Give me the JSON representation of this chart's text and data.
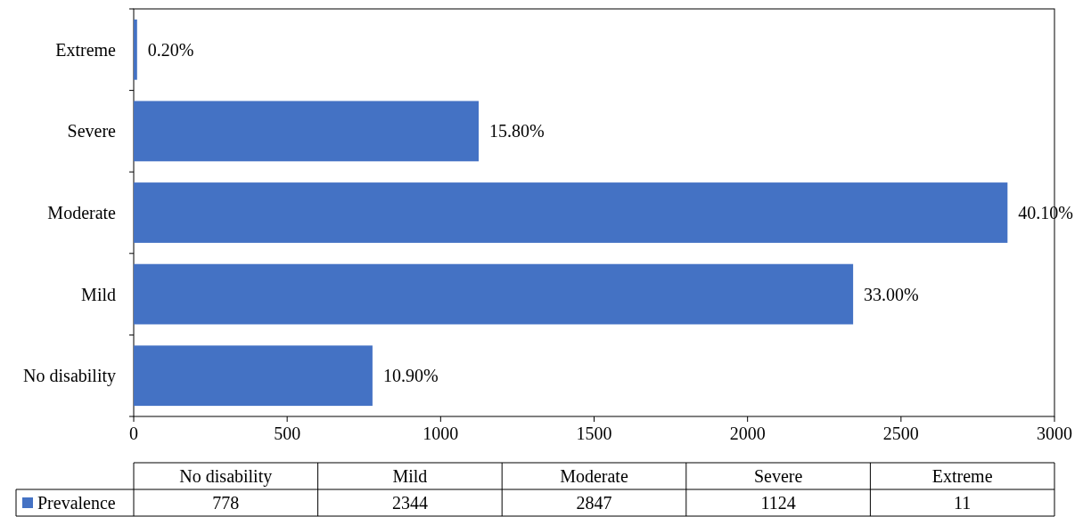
{
  "chart_data": [
    {
      "type": "bar",
      "orientation": "horizontal",
      "categories": [
        "Extreme",
        "Severe",
        "Moderate",
        "Mild",
        "No disability"
      ],
      "values": [
        11,
        1124,
        2847,
        2344,
        778
      ],
      "color": "#4472c4",
      "annotations": [
        {
          "text": "0.20%",
          "x": 11,
          "y": "Extreme"
        },
        {
          "text": "15.80%",
          "x": 1124,
          "y": "Severe"
        },
        {
          "text": "40.10%",
          "x": 2847,
          "y": "Moderate"
        },
        {
          "text": "33.00%",
          "x": 2344,
          "y": "Mild"
        },
        {
          "text": "10.90%",
          "x": 778,
          "y": "No disability"
        }
      ],
      "xlim": [
        0,
        3000
      ],
      "xticks": [
        0,
        500,
        1000,
        1500,
        2000,
        2500,
        3000
      ]
    },
    {
      "type": "other",
      "categories": [
        "No disability",
        "Mild",
        "Moderate",
        "Severe",
        "Extreme"
      ],
      "series": [
        {
          "name": "Prevalence",
          "color": "#4472c4",
          "values": [
            778,
            2344,
            2847,
            1124,
            11
          ]
        }
      ],
      "data_labels": true,
      "legend": "left"
    }
  ]
}
